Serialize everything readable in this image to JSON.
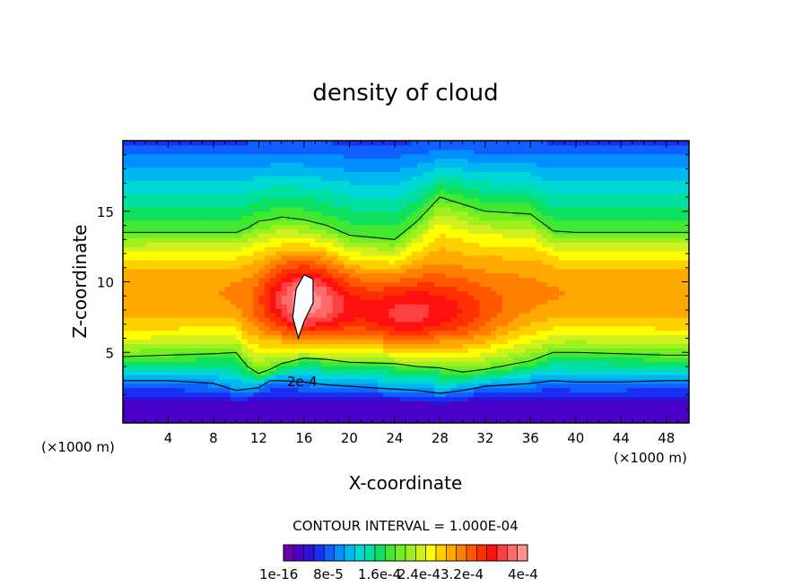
{
  "chart_data": {
    "type": "heatmap",
    "title": "density of cloud",
    "xlabel": "X-coordinate",
    "ylabel": "Z-coordinate",
    "x_unit_label": "(×1000 m)",
    "z_unit_label": "(×1000 m)",
    "xlim": [
      0,
      50
    ],
    "ylim": [
      0,
      20
    ],
    "x_ticks": [
      4,
      8,
      12,
      16,
      20,
      24,
      28,
      32,
      36,
      40,
      44,
      48
    ],
    "y_ticks": [
      5,
      10,
      15
    ],
    "contour_interval_text": "CONTOUR INTERVAL = 1.000E-04",
    "contour_label": "2e-4",
    "contour_levels": [
      0.0001,
      0.0002,
      0.0003,
      0.0004
    ],
    "colorbar": {
      "min": 1e-16,
      "max": 0.00044,
      "colors": [
        "#6a00a8",
        "#4b00c8",
        "#3010d8",
        "#1a30f0",
        "#1060ff",
        "#0090ff",
        "#00b8f0",
        "#00d8d8",
        "#00e0a0",
        "#10e060",
        "#40e830",
        "#70f020",
        "#a0f020",
        "#d0f020",
        "#ffff00",
        "#ffd000",
        "#ffa800",
        "#ff8000",
        "#ff5800",
        "#ff3000",
        "#ff1010",
        "#ff4040",
        "#ff6a6a",
        "#ff9090"
      ],
      "tick_labels": [
        "1e-16",
        "8e-5",
        "1.6e-4",
        "2.4e-4",
        "3.2e-4",
        "4e-4"
      ]
    },
    "contour_x_km": [
      0,
      4,
      8,
      10,
      11,
      12,
      13,
      14,
      16,
      18,
      20,
      24,
      26,
      28,
      30,
      32,
      36,
      38,
      40,
      44,
      48,
      50
    ],
    "contour_1e4_z_km": [
      3.0,
      3.0,
      2.8,
      2.3,
      2.4,
      2.5,
      3.0,
      3.0,
      2.9,
      2.7,
      2.6,
      2.4,
      2.3,
      2.1,
      2.3,
      2.6,
      2.8,
      3.0,
      2.9,
      2.9,
      3.0,
      3.0
    ],
    "contour_2e4_z_km": [
      4.7,
      4.8,
      4.9,
      5.0,
      4.0,
      3.5,
      3.8,
      4.2,
      4.6,
      4.5,
      4.3,
      4.2,
      4.0,
      3.9,
      3.6,
      3.8,
      4.4,
      5.0,
      5.0,
      4.9,
      4.8,
      4.8
    ],
    "contour_top_z_km": [
      13.5,
      13.5,
      13.5,
      13.5,
      13.8,
      14.3,
      14.4,
      14.6,
      14.4,
      14.0,
      13.3,
      13.0,
      14.3,
      16.0,
      15.5,
      15.0,
      14.8,
      13.6,
      13.5,
      13.5,
      13.5,
      13.5
    ],
    "contour_high_loop_km": [
      [
        15.5,
        6.0
      ],
      [
        15.0,
        7.5
      ],
      [
        15.3,
        9.5
      ],
      [
        16.0,
        10.5
      ],
      [
        16.8,
        10.2
      ],
      [
        16.8,
        8.5
      ],
      [
        16.0,
        7.2
      ],
      [
        15.5,
        6.0
      ]
    ]
  }
}
